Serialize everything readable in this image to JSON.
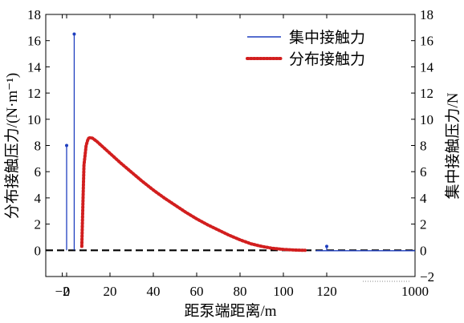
{
  "chart_data": {
    "type": "line",
    "xlabel": "距泵端距离/m",
    "ylabel_left": "分布接触压力/(N·m⁻¹)",
    "ylabel_right": "集中接触压力/N",
    "x_ticks": [
      "−2",
      "0",
      "20",
      "40",
      "60",
      "80",
      "100",
      "120",
      "1000"
    ],
    "y_ticks_left": [
      "0",
      "2",
      "4",
      "6",
      "8",
      "10",
      "12",
      "14",
      "16",
      "18"
    ],
    "y_ticks_right": [
      "−2",
      "0",
      "2",
      "4",
      "6",
      "8",
      "10",
      "12",
      "14",
      "16",
      "18"
    ],
    "xlim": [
      -2,
      130
    ],
    "ylim": [
      -2,
      18
    ],
    "x_axis_break": {
      "from": 130,
      "to": 1000
    },
    "legend_position": "top-right",
    "series": [
      {
        "name": "集中接触力",
        "style": "stem",
        "color": "#1f3fbf",
        "points": [
          {
            "x": 0,
            "y": 8.0
          },
          {
            "x": 3.5,
            "y": 16.5
          },
          {
            "x": 120,
            "y": 0.3
          }
        ]
      },
      {
        "name": "分布接触力",
        "style": "dotted",
        "color": "#d21e1e",
        "points": [
          {
            "x": 7,
            "y": 0.3
          },
          {
            "x": 7.5,
            "y": 3.5
          },
          {
            "x": 8,
            "y": 6.5
          },
          {
            "x": 9,
            "y": 8.0
          },
          {
            "x": 10,
            "y": 8.55
          },
          {
            "x": 11,
            "y": 8.6
          },
          {
            "x": 12,
            "y": 8.55
          },
          {
            "x": 14,
            "y": 8.3
          },
          {
            "x": 16,
            "y": 8.0
          },
          {
            "x": 20,
            "y": 7.4
          },
          {
            "x": 25,
            "y": 6.65
          },
          {
            "x": 30,
            "y": 5.95
          },
          {
            "x": 35,
            "y": 5.25
          },
          {
            "x": 40,
            "y": 4.6
          },
          {
            "x": 45,
            "y": 4.0
          },
          {
            "x": 50,
            "y": 3.45
          },
          {
            "x": 55,
            "y": 2.9
          },
          {
            "x": 60,
            "y": 2.4
          },
          {
            "x": 65,
            "y": 1.95
          },
          {
            "x": 70,
            "y": 1.55
          },
          {
            "x": 75,
            "y": 1.15
          },
          {
            "x": 80,
            "y": 0.8
          },
          {
            "x": 85,
            "y": 0.5
          },
          {
            "x": 90,
            "y": 0.3
          },
          {
            "x": 95,
            "y": 0.15
          },
          {
            "x": 100,
            "y": 0.07
          },
          {
            "x": 105,
            "y": 0.02
          },
          {
            "x": 110,
            "y": 0.0
          }
        ]
      }
    ],
    "reference_line": {
      "y": 0,
      "style": "dashed",
      "color": "#000000"
    },
    "tail_segment": {
      "from_x": 115,
      "to_x": 1000,
      "y": 0,
      "color": "#1f3fbf"
    }
  }
}
